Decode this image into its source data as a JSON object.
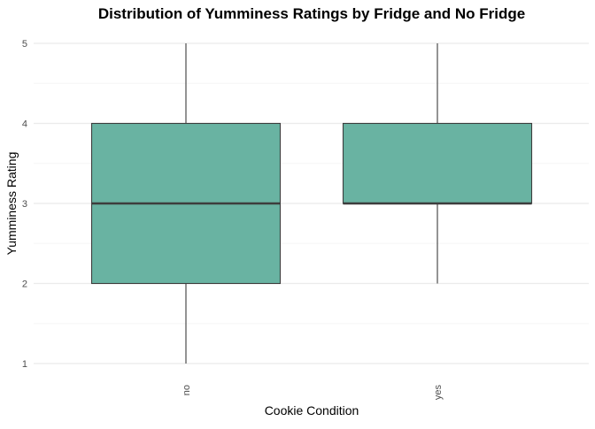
{
  "chart_data": {
    "type": "box",
    "title": "Distribution of Yumminess Ratings by Fridge and No Fridge",
    "xlabel": "Cookie Condition",
    "ylabel": "Yumminess Rating",
    "categories": [
      "no",
      "yes"
    ],
    "boxes": [
      {
        "category": "no",
        "min": 1,
        "q1": 2,
        "median": 3,
        "q3": 4,
        "max": 5
      },
      {
        "category": "yes",
        "min": 2,
        "q1": 3,
        "median": 3,
        "q3": 4,
        "max": 5
      }
    ],
    "y_ticks": [
      1,
      2,
      3,
      4,
      5
    ],
    "ylim": [
      0.9,
      5.1
    ],
    "grid": true,
    "legend": "none",
    "fill_color": "#69b3a2",
    "border_color": "#3d3d3d",
    "grid_major_color": "#ebebeb",
    "grid_minor_color": "#f5f5f5"
  }
}
